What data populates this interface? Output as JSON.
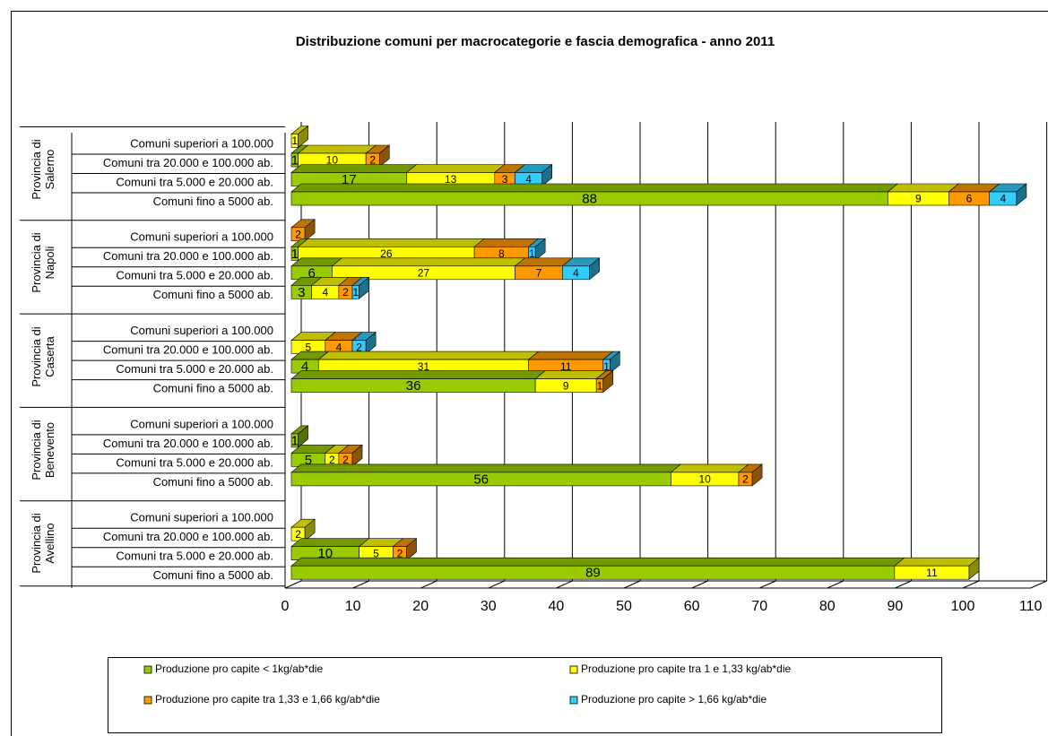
{
  "chart_data": {
    "type": "bar",
    "orientation": "horizontal",
    "stacked": true,
    "title": "Distribuzione comuni per macrocategorie e fascia demografica - anno 2011",
    "groups": [
      "Provincia di Salerno",
      "Provincia di Napoli",
      "Provincia di Caserta",
      "Provincia di Benevento",
      "Provincia di Avellino"
    ],
    "categories": [
      "Comuni superiori a 100.000",
      "Comuni tra 20.000 e 100.000 ab.",
      "Comuni tra 5.000 e 20.000 ab.",
      "Comuni fino a 5000 ab.",
      "Comuni superiori a 100.000",
      "Comuni tra 20.000 e 100.000 ab.",
      "Comuni tra 5.000 e 20.000 ab.",
      "Comuni fino a 5000 ab.",
      "Comuni superiori a 100.000",
      "Comuni tra 20.000 e 100.000 ab.",
      "Comuni tra 5.000 e 20.000 ab.",
      "Comuni fino a 5000 ab.",
      "Comuni superiori a 100.000",
      "Comuni tra 20.000 e 100.000 ab.",
      "Comuni tra 5.000 e 20.000 ab.",
      "Comuni fino a 5000 ab.",
      "Comuni superiori a 100.000",
      "Comuni tra 20.000 e 100.000 ab.",
      "Comuni tra 5.000 e 20.000 ab.",
      "Comuni fino a 5000 ab."
    ],
    "series": [
      {
        "name": "Produzione pro capite < 1kg/ab*die",
        "color": "#99cc00",
        "values": [
          null,
          1,
          17,
          88,
          null,
          1,
          6,
          3,
          null,
          null,
          4,
          36,
          null,
          1,
          5,
          56,
          null,
          null,
          10,
          89
        ]
      },
      {
        "name": "Produzione pro capite tra 1 e 1,33 kg/ab*die",
        "color": "#ffff00",
        "values": [
          1,
          10,
          13,
          9,
          null,
          26,
          27,
          4,
          null,
          5,
          31,
          9,
          null,
          null,
          2,
          10,
          null,
          2,
          5,
          11
        ]
      },
      {
        "name": "Produzione pro capite tra 1,33 e 1,66 kg/ab*die",
        "color": "#ff9900",
        "values": [
          null,
          2,
          3,
          6,
          2,
          8,
          7,
          2,
          null,
          4,
          11,
          1,
          null,
          null,
          2,
          2,
          null,
          null,
          2,
          null
        ]
      },
      {
        "name": "Produzione pro capite > 1,66 kg/ab*die",
        "color": "#33ccff",
        "values": [
          null,
          null,
          4,
          4,
          null,
          1,
          4,
          1,
          null,
          2,
          1,
          null,
          null,
          null,
          null,
          null,
          null,
          null,
          null,
          null
        ]
      }
    ],
    "xlim": [
      0,
      110
    ],
    "xticks": [
      0,
      10,
      20,
      30,
      40,
      50,
      60,
      70,
      80,
      90,
      100,
      110
    ],
    "grid": true,
    "legend": "bottom"
  }
}
